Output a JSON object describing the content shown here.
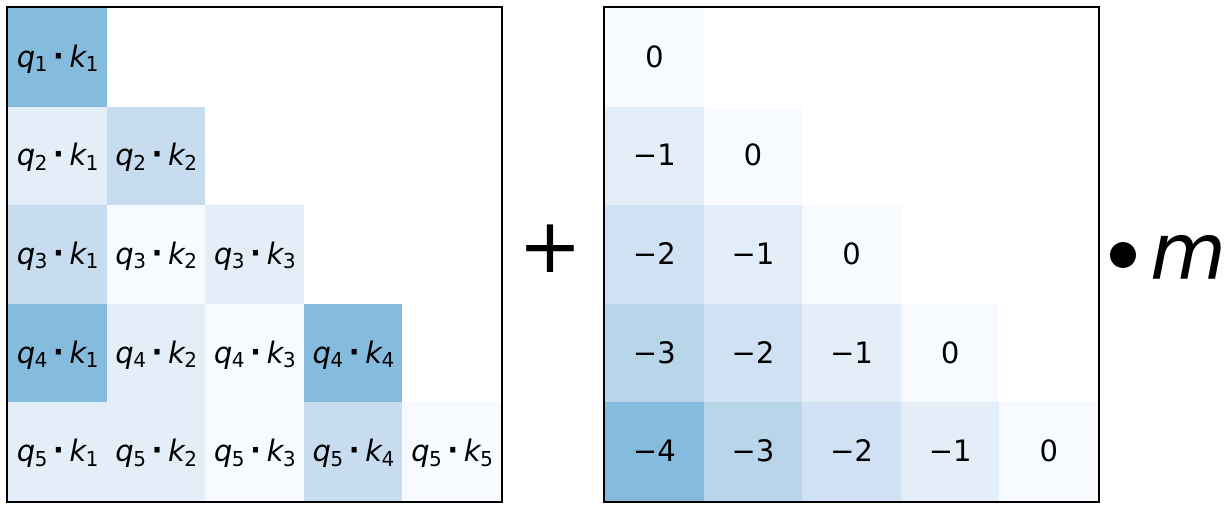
{
  "left_matrix": {
    "rows": [
      [
        {
          "q": "1",
          "k": "1",
          "color": "#85bbdc"
        }
      ],
      [
        {
          "q": "2",
          "k": "1",
          "color": "#e3eef8"
        },
        {
          "q": "2",
          "k": "2",
          "color": "#c8dcef"
        }
      ],
      [
        {
          "q": "3",
          "k": "1",
          "color": "#c8dcef"
        },
        {
          "q": "3",
          "k": "2",
          "color": "#f7fbff"
        },
        {
          "q": "3",
          "k": "3",
          "color": "#e3eef8"
        }
      ],
      [
        {
          "q": "4",
          "k": "1",
          "color": "#85bbdc"
        },
        {
          "q": "4",
          "k": "2",
          "color": "#e3eef8"
        },
        {
          "q": "4",
          "k": "3",
          "color": "#f7fbff"
        },
        {
          "q": "4",
          "k": "4",
          "color": "#85bbdc"
        }
      ],
      [
        {
          "q": "5",
          "k": "1",
          "color": "#e3eef8"
        },
        {
          "q": "5",
          "k": "2",
          "color": "#e3eef8"
        },
        {
          "q": "5",
          "k": "3",
          "color": "#f7fbff"
        },
        {
          "q": "5",
          "k": "4",
          "color": "#c8dcef"
        },
        {
          "q": "5",
          "k": "5",
          "color": "#f7fbff"
        }
      ]
    ]
  },
  "operator_plus": "+",
  "right_matrix": {
    "rows": [
      [
        {
          "value": "0",
          "color": "#f7fbff"
        }
      ],
      [
        {
          "value": "−1",
          "color": "#e3eef8"
        },
        {
          "value": "0",
          "color": "#f7fbff"
        }
      ],
      [
        {
          "value": "−2",
          "color": "#cfe1f2"
        },
        {
          "value": "−1",
          "color": "#e3eef8"
        },
        {
          "value": "0",
          "color": "#f7fbff"
        }
      ],
      [
        {
          "value": "−3",
          "color": "#b8d5ea"
        },
        {
          "value": "−2",
          "color": "#cfe1f2"
        },
        {
          "value": "−1",
          "color": "#e3eef8"
        },
        {
          "value": "0",
          "color": "#f7fbff"
        }
      ],
      [
        {
          "value": "−4",
          "color": "#85bbdc"
        },
        {
          "value": "−3",
          "color": "#b8d5ea"
        },
        {
          "value": "−2",
          "color": "#cfe1f2"
        },
        {
          "value": "−1",
          "color": "#e3eef8"
        },
        {
          "value": "0",
          "color": "#f7fbff"
        }
      ]
    ]
  },
  "multiplier": {
    "operator_icon": "bullet-dot-icon",
    "symbol": "m"
  }
}
